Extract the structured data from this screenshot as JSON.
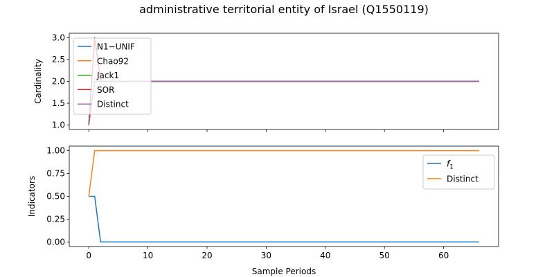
{
  "figure": {
    "title": "administrative territorial entity of Israel (Q1550119)"
  },
  "chart_data": [
    {
      "type": "line",
      "xlabel": "",
      "ylabel": "Cardinality",
      "xlim": [
        -3.3,
        69.3
      ],
      "ylim": [
        0.9,
        3.1
      ],
      "yticks": [
        1.0,
        1.5,
        2.0,
        2.5,
        3.0
      ],
      "ytick_labels": [
        "1.0",
        "1.5",
        "2.0",
        "2.5",
        "3.0"
      ],
      "xticks": [
        0,
        10,
        20,
        30,
        40,
        50,
        60
      ],
      "show_xtick_labels": false,
      "legend": {
        "location": "upper-left"
      },
      "series": [
        {
          "name": "N1−UNIF",
          "color": "#1f77b4",
          "x": [
            0,
            1,
            2,
            66
          ],
          "y": [
            1,
            3,
            2,
            2
          ]
        },
        {
          "name": "Chao92",
          "color": "#ff7f0e",
          "x": [
            0,
            1,
            2,
            66
          ],
          "y": [
            1,
            3,
            2,
            2
          ]
        },
        {
          "name": "Jack1",
          "color": "#2ca02c",
          "x": [
            0,
            1,
            2,
            66
          ],
          "y": [
            1,
            3,
            2,
            2
          ]
        },
        {
          "name": "SOR",
          "color": "#d62728",
          "x": [
            0,
            1,
            2,
            66
          ],
          "y": [
            1,
            3,
            2,
            2
          ]
        },
        {
          "name": "Distinct",
          "color": "#9467bd",
          "x": [
            0,
            1,
            2,
            66
          ],
          "y": [
            1,
            2,
            2,
            2
          ]
        }
      ]
    },
    {
      "type": "line",
      "xlabel": "Sample Periods",
      "ylabel": "Indicators",
      "xlim": [
        -3.3,
        69.3
      ],
      "ylim": [
        -0.05,
        1.05
      ],
      "yticks": [
        0.0,
        0.25,
        0.5,
        0.75,
        1.0
      ],
      "ytick_labels": [
        "0.00",
        "0.25",
        "0.50",
        "0.75",
        "1.00"
      ],
      "xticks": [
        0,
        10,
        20,
        30,
        40,
        50,
        60
      ],
      "xtick_labels": [
        "0",
        "10",
        "20",
        "30",
        "40",
        "50",
        "60"
      ],
      "show_xtick_labels": true,
      "legend": {
        "location": "upper-right"
      },
      "series": [
        {
          "name": "f1",
          "label_main": "f",
          "label_sub": "1",
          "color": "#1f77b4",
          "x": [
            0,
            1,
            2,
            66
          ],
          "y": [
            0.5,
            0.5,
            0,
            0
          ]
        },
        {
          "name": "Distinct",
          "color": "#ff7f0e",
          "x": [
            0,
            1,
            66
          ],
          "y": [
            0.5,
            1,
            1
          ]
        }
      ]
    }
  ]
}
